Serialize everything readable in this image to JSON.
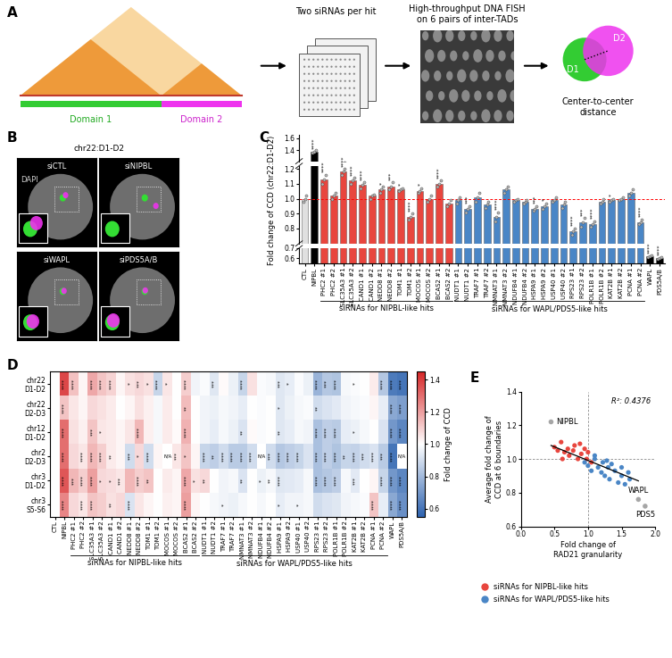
{
  "panels": {
    "A": {
      "label": "A",
      "domains": [
        "Domain 1",
        "Domain 2"
      ],
      "steps": [
        "Two siRNAs per hit",
        "High-throughput DNA FISH\non 6 pairs of inter-TADs"
      ],
      "spots": [
        "D1",
        "D2"
      ],
      "measure": "Center-to-center\ndistance"
    },
    "B": {
      "label": "B",
      "title": "chr22:D1-D2",
      "channel": "DAPI",
      "conditions": [
        "siCTL",
        "siNIPBL",
        "siWAPL",
        "siPDS5A/B"
      ]
    }
  },
  "chart_data": [
    {
      "panel": "C",
      "type": "bar",
      "categories": [
        "CTL",
        "NIPBL",
        "PHC2 #1",
        "PHC2 #2",
        "SLC35A3 #1",
        "SLC35A3 #2",
        "CAND1 #1",
        "CAND1 #2",
        "NEDD8 #1",
        "NEDD8 #2",
        "TOM1 #1",
        "TOM1 #2",
        "MOCOS #1",
        "MOCOS #2",
        "BCAS2 #1",
        "BCAS2 #2",
        "NUDT1 #1",
        "NUDT1 #2",
        "TRAF7 #1",
        "TRAF7 #2",
        "NMNAT3 #1",
        "NMNAT3 #2",
        "NDUFB4 #1",
        "NDUFB4 #2",
        "HSPA9 #1",
        "HSPA9 #2",
        "USP40 #1",
        "USP40 #2",
        "RPS23 #1",
        "RPS23 #2",
        "POLR1B #1",
        "POLR1B #2",
        "KAT2B #1",
        "KAT2B #2",
        "PCNA #1",
        "PCNA #2",
        "WAPL",
        "PDS5A/B"
      ],
      "values": [
        1.0,
        1.38,
        1.13,
        1.02,
        1.18,
        1.12,
        1.09,
        1.02,
        1.06,
        1.08,
        1.06,
        0.88,
        1.05,
        1.0,
        1.1,
        0.97,
        0.99,
        0.93,
        1.01,
        0.96,
        0.88,
        1.06,
        0.99,
        0.98,
        0.93,
        0.95,
        0.99,
        0.96,
        0.78,
        0.84,
        0.83,
        0.98,
        0.99,
        1.0,
        1.04,
        0.84,
        0.62,
        0.6
      ],
      "points": [
        [
          0.98,
          1.0,
          1.02
        ],
        [
          1.36,
          1.38,
          1.41
        ],
        [
          1.1,
          1.13,
          1.16
        ],
        [
          1.0,
          1.02,
          1.04
        ],
        [
          1.16,
          1.18,
          1.2
        ],
        [
          1.1,
          1.12,
          1.14
        ],
        [
          1.07,
          1.09,
          1.11
        ],
        [
          1.0,
          1.02,
          1.03
        ],
        [
          1.04,
          1.06,
          1.08
        ],
        [
          1.06,
          1.08,
          1.11
        ],
        [
          1.05,
          1.06,
          1.07
        ],
        [
          0.86,
          0.88,
          0.9
        ],
        [
          1.04,
          1.05,
          1.07
        ],
        [
          0.98,
          1.0,
          1.02
        ],
        [
          1.08,
          1.1,
          1.12
        ],
        [
          0.95,
          0.97,
          0.99
        ],
        [
          0.97,
          0.99,
          1.01
        ],
        [
          0.91,
          0.93,
          0.95
        ],
        [
          0.98,
          1.01,
          1.04
        ],
        [
          0.94,
          0.96,
          0.98
        ],
        [
          0.85,
          0.88,
          0.91
        ],
        [
          1.04,
          1.06,
          1.08
        ],
        [
          0.98,
          0.99,
          1.0
        ],
        [
          0.97,
          0.98,
          0.99
        ],
        [
          0.92,
          0.93,
          0.95
        ],
        [
          0.93,
          0.95,
          0.97
        ],
        [
          0.98,
          0.99,
          1.01
        ],
        [
          0.94,
          0.96,
          0.98
        ],
        [
          0.76,
          0.78,
          0.8
        ],
        [
          0.81,
          0.84,
          0.87
        ],
        [
          0.81,
          0.83,
          0.85
        ],
        [
          0.97,
          0.98,
          1.0
        ],
        [
          0.98,
          0.99,
          1.0
        ],
        [
          0.99,
          1.0,
          1.01
        ],
        [
          1.02,
          1.04,
          1.06
        ],
        [
          0.83,
          0.84,
          0.86
        ],
        [
          0.61,
          0.62,
          0.63
        ],
        [
          0.59,
          0.6,
          0.61
        ]
      ],
      "significance": [
        null,
        "****",
        "****",
        null,
        "****",
        "****",
        "****",
        null,
        "*",
        "***",
        "*",
        "****",
        "*",
        null,
        "****",
        null,
        null,
        "***",
        null,
        null,
        "****",
        null,
        null,
        null,
        "***",
        "*",
        null,
        null,
        "****",
        "***",
        "****",
        null,
        "*",
        null,
        null,
        "****",
        "****",
        "****"
      ],
      "colors": [
        "#e0e0e0",
        "#000000",
        "#e8463e",
        "#e8463e",
        "#e8463e",
        "#e8463e",
        "#e8463e",
        "#e8463e",
        "#e8463e",
        "#e8463e",
        "#e8463e",
        "#e8463e",
        "#e8463e",
        "#e8463e",
        "#e8463e",
        "#e8463e",
        "#4a86c6",
        "#4a86c6",
        "#4a86c6",
        "#4a86c6",
        "#4a86c6",
        "#4a86c6",
        "#4a86c6",
        "#4a86c6",
        "#4a86c6",
        "#4a86c6",
        "#4a86c6",
        "#4a86c6",
        "#4a86c6",
        "#4a86c6",
        "#4a86c6",
        "#4a86c6",
        "#4a86c6",
        "#4a86c6",
        "#4a86c6",
        "#4a86c6",
        "#000000",
        "#000000"
      ],
      "y_label": "Fold change of CCD (chr22:D1-D2)",
      "y_segments": [
        {
          "ylim": [
            1.22,
            1.65
          ],
          "yticks": [
            1.4,
            1.6
          ]
        },
        {
          "ylim": [
            0.7,
            1.22
          ],
          "yticks": [
            0.8,
            0.9,
            1.0,
            1.1,
            1.2
          ]
        },
        {
          "ylim": [
            0.55,
            0.7
          ],
          "yticks": [
            0.6,
            0.7
          ]
        }
      ],
      "reference_line": 1.0,
      "groups": [
        {
          "label": "siRNAs for NIPBL-like hits",
          "from": "PHC2 #1",
          "to": "BCAS2 #2"
        },
        {
          "label": "siRNAs for WAPL/PDS5-like hits",
          "from": "NUDT1 #1",
          "to": "PCNA #2"
        }
      ]
    },
    {
      "panel": "D",
      "type": "heatmap",
      "categories": [
        "CTL",
        "NIPBL",
        "PHC2 #1",
        "PHC2 #2",
        "SLC35A3 #1",
        "SLC35A3 #2",
        "CAND1 #1",
        "CAND1 #2",
        "NEDD8 #1",
        "NEDD8 #2",
        "TOM1 #1",
        "TOM1 #2",
        "MOCOS #1",
        "MOCOS #2",
        "BCAS2 #1",
        "BCAS2 #2",
        "NUDT1 #1",
        "NUDT1 #2",
        "TRAF7 #1",
        "TRAF7 #2",
        "NMNAT3 #1",
        "NMNAT3 #2",
        "NDUFB4 #1",
        "NDUFB4 #2",
        "HSPA9 #1",
        "HSPA9 #2",
        "USP40 #1",
        "USP40 #2",
        "RPS23 #1",
        "RPS23 #2",
        "POLR1B #1",
        "POLR1B #2",
        "KAT2B #1",
        "KAT2B #2",
        "PCNA #1",
        "PCNA #2",
        "WAPL",
        "PDS5A/B"
      ],
      "rows": [
        "chr22\nD1-D2",
        "chr22\nD2-D3",
        "chr12\nD1-D2",
        "chr2\nD2-D3",
        "chr3\nD1-D2",
        "chr3\nS5-S6"
      ],
      "cells": [
        [
          1.0,
          1.38,
          1.13,
          1.02,
          1.18,
          1.12,
          1.09,
          1.02,
          1.06,
          1.08,
          1.06,
          0.88,
          1.05,
          1.0,
          1.1,
          0.97,
          0.99,
          0.93,
          1.01,
          0.96,
          0.88,
          1.06,
          0.99,
          0.98,
          0.93,
          0.95,
          0.99,
          0.96,
          0.78,
          0.84,
          0.83,
          0.98,
          0.99,
          1.0,
          1.04,
          0.84,
          0.62,
          0.6
        ],
        [
          1.0,
          1.12,
          1.05,
          1.02,
          1.08,
          1.06,
          1.04,
          1.0,
          1.02,
          1.06,
          1.03,
          0.98,
          1.04,
          1.0,
          1.14,
          1.0,
          0.97,
          0.96,
          0.98,
          0.97,
          0.95,
          1.0,
          0.99,
          1.0,
          0.93,
          0.96,
          0.98,
          0.99,
          0.9,
          0.92,
          0.94,
          0.97,
          0.98,
          0.99,
          1.02,
          0.95,
          0.75,
          0.72
        ],
        [
          1.0,
          1.3,
          1.06,
          1.03,
          1.12,
          1.05,
          1.04,
          1.02,
          1.05,
          1.15,
          1.03,
          0.98,
          1.04,
          1.01,
          1.16,
          1.0,
          0.97,
          0.95,
          0.98,
          0.96,
          0.92,
          1.01,
          0.99,
          1.0,
          0.93,
          0.95,
          0.98,
          0.97,
          0.82,
          0.86,
          0.85,
          0.95,
          0.96,
          0.98,
          1.0,
          0.92,
          0.7,
          0.65
        ],
        [
          1.0,
          1.3,
          1.08,
          1.05,
          1.15,
          1.1,
          1.04,
          1.02,
          0.9,
          1.08,
          0.9,
          1.02,
          null,
          1.05,
          1.12,
          1.02,
          0.88,
          0.86,
          0.9,
          0.85,
          0.85,
          0.9,
          null,
          0.9,
          0.84,
          0.86,
          0.88,
          0.92,
          0.82,
          0.86,
          0.83,
          0.88,
          0.87,
          0.9,
          0.92,
          0.85,
          0.6,
          null
        ],
        [
          1.0,
          1.35,
          1.15,
          1.1,
          1.2,
          1.08,
          1.07,
          1.05,
          1.15,
          1.1,
          1.12,
          1.0,
          1.04,
          1.02,
          1.18,
          1.06,
          1.08,
          1.0,
          0.97,
          0.98,
          0.92,
          1.0,
          0.96,
          0.98,
          0.93,
          0.94,
          0.95,
          0.98,
          0.82,
          0.84,
          0.86,
          0.98,
          0.94,
          1.0,
          1.02,
          0.88,
          0.7,
          0.65
        ],
        [
          1.0,
          1.25,
          1.08,
          1.05,
          1.12,
          1.1,
          1.06,
          1.08,
          0.92,
          1.05,
          1.02,
          1.0,
          1.03,
          1.02,
          1.2,
          1.02,
          1.0,
          0.98,
          0.97,
          0.96,
          0.98,
          1.0,
          0.98,
          1.0,
          0.95,
          0.97,
          0.97,
          0.98,
          0.9,
          0.92,
          0.93,
          0.97,
          0.98,
          0.99,
          1.12,
          0.95,
          0.75,
          0.68
        ]
      ],
      "cell_labels": [
        [
          null,
          "****",
          "****",
          null,
          "****",
          "****",
          "****",
          null,
          "*",
          "***",
          "*",
          "****",
          "*",
          null,
          "****",
          null,
          null,
          "***",
          null,
          null,
          "****",
          null,
          null,
          null,
          "***",
          "*",
          null,
          null,
          "****",
          "***",
          "****",
          null,
          "*",
          null,
          null,
          "****",
          "****",
          "****"
        ],
        [
          null,
          "****",
          null,
          null,
          null,
          null,
          null,
          null,
          null,
          null,
          null,
          null,
          null,
          null,
          "**",
          null,
          null,
          null,
          null,
          null,
          null,
          null,
          null,
          null,
          "*",
          null,
          null,
          null,
          "**",
          null,
          null,
          null,
          null,
          null,
          null,
          null,
          "****",
          "****"
        ],
        [
          null,
          "****",
          null,
          null,
          "***",
          "*",
          null,
          null,
          null,
          "****",
          null,
          null,
          null,
          null,
          "****",
          null,
          null,
          null,
          null,
          null,
          "**",
          null,
          null,
          null,
          "**",
          null,
          null,
          null,
          "****",
          "****",
          "****",
          null,
          "*",
          null,
          null,
          null,
          "****",
          "****"
        ],
        [
          null,
          "****",
          null,
          "****",
          "****",
          "****",
          "**",
          null,
          "***",
          "*",
          "****",
          null,
          "N/A",
          "***",
          "*",
          null,
          "****",
          "**",
          "****",
          "****",
          "****",
          "****",
          "N/A",
          "***",
          "****",
          "****",
          "****",
          null,
          "****",
          "****",
          "****",
          "**",
          "****",
          "***",
          "****",
          "***",
          "****",
          "N/A"
        ],
        [
          null,
          "****",
          "***",
          "****",
          "****",
          "*",
          "*",
          "***",
          null,
          "****",
          "**",
          null,
          null,
          null,
          "****",
          "*",
          "**",
          null,
          null,
          null,
          "**",
          null,
          "*",
          "**",
          "****",
          null,
          null,
          null,
          "****",
          "****",
          "****",
          null,
          "***",
          null,
          null,
          "****",
          "****",
          "****"
        ],
        [
          null,
          "****",
          null,
          "****",
          "****",
          null,
          "**",
          null,
          "****",
          null,
          null,
          null,
          null,
          null,
          "****",
          null,
          null,
          null,
          "*",
          null,
          null,
          null,
          null,
          null,
          "*",
          null,
          "*",
          null,
          null,
          null,
          null,
          null,
          null,
          null,
          "****",
          null,
          "****",
          "****"
        ]
      ],
      "colorbar": {
        "range": [
          0.55,
          1.45
        ],
        "ticks": [
          0.6,
          0.8,
          1.0,
          1.2,
          1.4
        ],
        "label": "Fold change of CCD"
      },
      "groups": [
        {
          "label": "siRNAs for NIPBL-like hits",
          "from": "PHC2 #1",
          "to": "BCAS2 #2"
        },
        {
          "label": "siRNAs for WAPL/PDS5-like hits",
          "from": "NUDT1 #1",
          "to": "PCNA #2"
        }
      ]
    },
    {
      "panel": "E",
      "type": "scatter",
      "x_label": "Fold change of\nRAD21 granularity",
      "y_label": "Average fold change of\nCCD at 6 boundaries",
      "xlim": [
        0.0,
        2.0
      ],
      "xticks": [
        0.0,
        0.5,
        1.0,
        1.5,
        2.0
      ],
      "ylim": [
        0.6,
        1.4
      ],
      "yticks": [
        0.6,
        0.8,
        1.0,
        1.2,
        1.4
      ],
      "series": [
        {
          "name": "siRNAs for NIPBL-like hits",
          "color": "#e8463e",
          "x": [
            0.5,
            0.55,
            0.6,
            0.65,
            0.7,
            0.72,
            0.78,
            0.8,
            0.85,
            0.9,
            0.95,
            0.98,
            1.0,
            1.05,
            0.88,
            0.62
          ],
          "y": [
            1.07,
            1.05,
            1.1,
            1.04,
            1.06,
            1.02,
            1.05,
            1.08,
            1.0,
            1.03,
            1.06,
            1.0,
            1.04,
            0.98,
            1.09,
            1.0
          ]
        },
        {
          "name": "siRNAs for WAPL/PDS5-like hits",
          "color": "#4a86c6",
          "x": [
            0.95,
            1.0,
            1.05,
            1.1,
            1.15,
            1.2,
            1.22,
            1.25,
            1.3,
            1.32,
            1.35,
            1.4,
            1.45,
            1.5,
            1.5,
            1.55,
            1.6,
            1.62,
            1.1,
            1.28
          ],
          "y": [
            0.98,
            0.96,
            0.93,
            1.0,
            0.95,
            0.92,
            0.98,
            0.9,
            0.95,
            0.88,
            0.97,
            0.93,
            0.86,
            0.9,
            0.95,
            0.85,
            0.92,
            0.88,
            1.02,
            0.99
          ]
        }
      ],
      "labeled_points": [
        {
          "label": "NIPBL",
          "x": 0.45,
          "y": 1.22,
          "color": "#a6a6a6"
        },
        {
          "label": "WAPL",
          "x": 1.75,
          "y": 0.76,
          "color": "#a6a6a6"
        },
        {
          "label": "PDS5",
          "x": 1.85,
          "y": 0.72,
          "color": "#a6a6a6"
        }
      ],
      "fit_line": {
        "x": [
          0.45,
          1.75
        ],
        "y": [
          1.08,
          0.87
        ]
      },
      "reference_lines": {
        "x": 1.0,
        "y": 1.0
      },
      "annotations": [
        "R²: 0.4376"
      ],
      "legend": "upper left"
    }
  ]
}
